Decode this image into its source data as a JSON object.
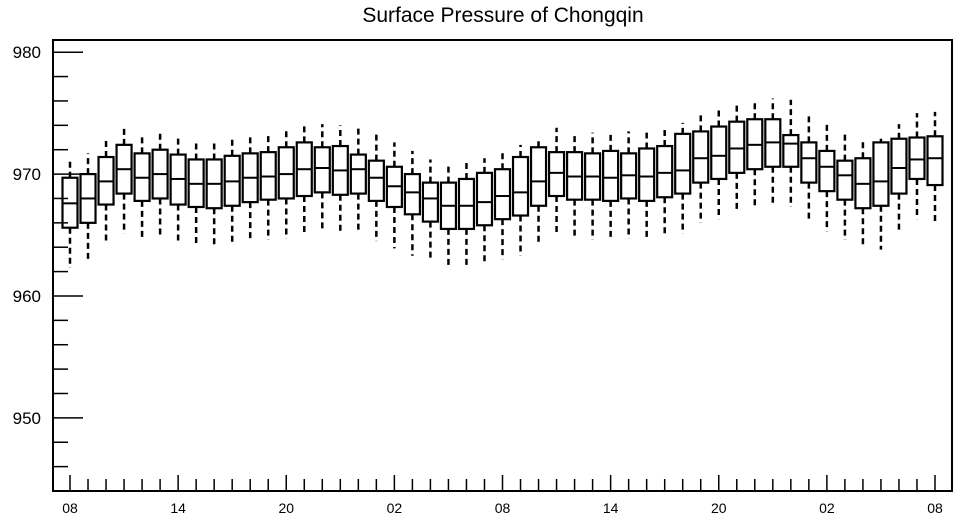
{
  "chart_data": {
    "type": "box",
    "title": "Surface Pressure of Chongqin",
    "xlabel": "",
    "ylabel": "",
    "ylim": [
      944,
      981
    ],
    "grid": false,
    "legend": "none",
    "y_ticks": [
      950,
      960,
      970,
      980
    ],
    "x_tick_labels": [
      "08",
      "14",
      "20",
      "02",
      "08",
      "14",
      "20",
      "02",
      "08"
    ],
    "x_tick_hours": [
      0,
      6,
      12,
      18,
      24,
      30,
      36,
      42,
      48
    ],
    "hours": [
      0,
      1,
      2,
      3,
      4,
      5,
      6,
      7,
      8,
      9,
      10,
      11,
      12,
      13,
      14,
      15,
      16,
      17,
      18,
      19,
      20,
      21,
      22,
      23,
      24,
      25,
      26,
      27,
      28,
      29,
      30,
      31,
      32,
      33,
      34,
      35,
      36,
      37,
      38,
      39,
      40,
      41,
      42,
      43,
      44,
      45,
      46,
      47,
      48
    ],
    "q1": [
      965.6,
      966.0,
      967.5,
      968.4,
      967.8,
      968.0,
      967.5,
      967.3,
      967.2,
      967.4,
      967.7,
      967.9,
      968.0,
      968.2,
      968.5,
      968.3,
      968.4,
      967.8,
      967.3,
      966.7,
      966.1,
      965.5,
      965.5,
      965.8,
      966.3,
      966.6,
      967.4,
      968.2,
      967.9,
      967.9,
      967.8,
      968.0,
      967.8,
      968.1,
      968.4,
      969.3,
      969.6,
      970.1,
      970.4,
      970.6,
      970.6,
      969.3,
      968.6,
      967.9,
      967.2,
      967.4,
      968.4,
      969.6,
      969.1
    ],
    "q3": [
      969.7,
      970.0,
      971.4,
      972.4,
      971.7,
      972.0,
      971.6,
      971.2,
      971.2,
      971.5,
      971.7,
      971.8,
      972.2,
      972.6,
      972.2,
      972.3,
      971.6,
      971.1,
      970.6,
      970.0,
      969.3,
      969.3,
      969.6,
      970.1,
      970.4,
      971.4,
      972.2,
      971.8,
      971.8,
      971.7,
      971.9,
      971.7,
      972.1,
      972.3,
      973.3,
      973.5,
      973.9,
      974.3,
      974.5,
      974.5,
      973.2,
      972.6,
      971.9,
      971.1,
      971.3,
      972.6,
      972.9,
      973.0,
      973.1
    ],
    "median": [
      967.6,
      968.0,
      969.4,
      970.4,
      969.7,
      970.0,
      969.6,
      969.2,
      969.2,
      969.4,
      969.7,
      969.8,
      970.0,
      970.4,
      970.5,
      970.3,
      970.4,
      969.7,
      969.0,
      968.5,
      968.0,
      967.4,
      967.4,
      967.7,
      968.2,
      968.5,
      969.4,
      970.1,
      969.8,
      969.8,
      969.7,
      969.9,
      969.8,
      970.1,
      970.3,
      971.3,
      971.5,
      972.1,
      972.4,
      972.6,
      972.5,
      971.3,
      970.6,
      969.9,
      969.2,
      969.4,
      970.5,
      971.2,
      971.3
    ],
    "whisker_low": [
      962.3,
      962.9,
      964.3,
      965.1,
      964.6,
      964.8,
      964.4,
      964.1,
      964.0,
      964.3,
      964.5,
      964.6,
      964.7,
      965.0,
      965.3,
      965.1,
      965.2,
      964.5,
      963.9,
      963.3,
      962.9,
      962.4,
      962.3,
      962.6,
      963.0,
      963.3,
      964.2,
      965.0,
      964.7,
      964.6,
      964.6,
      964.7,
      964.6,
      964.9,
      965.1,
      966.0,
      966.3,
      966.9,
      967.2,
      967.4,
      967.3,
      966.1,
      965.3,
      964.6,
      964.0,
      963.8,
      965.2,
      966.3,
      965.9
    ],
    "whisker_high": [
      971.3,
      971.7,
      973.0,
      974.0,
      973.2,
      973.6,
      973.2,
      972.8,
      972.8,
      973.1,
      973.3,
      973.4,
      973.6,
      974.0,
      974.1,
      974.0,
      974.0,
      973.3,
      972.6,
      971.9,
      971.2,
      970.9,
      971.0,
      971.3,
      971.8,
      972.4,
      973.0,
      973.8,
      973.4,
      973.4,
      973.3,
      973.5,
      973.4,
      973.7,
      974.2,
      975.0,
      975.3,
      975.8,
      976.1,
      976.2,
      976.1,
      974.9,
      974.2,
      973.5,
      972.8,
      972.9,
      974.1,
      975.0,
      975.1
    ]
  },
  "colors": {
    "stroke": "#000000",
    "background": "#ffffff"
  }
}
